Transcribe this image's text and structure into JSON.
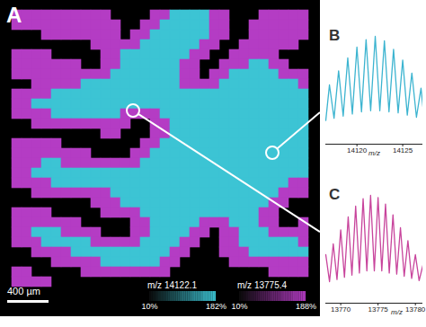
{
  "chart_data": [
    {
      "type": "heatmap",
      "title": "A",
      "scale_bar": "400 µm",
      "tick_labels": false,
      "series": [
        {
          "name": "m/z 14122.1",
          "color": "#3cc4d4",
          "colorbar_range": [
            10,
            182
          ],
          "colorbar_ticks": [
            {
              "value": 10,
              "label": "10%"
            },
            {
              "value": 182,
              "label": "182%"
            }
          ]
        },
        {
          "name": "m/z 13775.4",
          "color": "#b43cc4",
          "colorbar_range": [
            10,
            188
          ],
          "colorbar_ticks": [
            {
              "value": 10,
              "label": "10%"
            },
            {
              "value": 188,
              "label": "188%"
            }
          ]
        }
      ],
      "cells": [
        [
          2,
          2,
          2,
          2,
          2,
          2,
          2,
          2,
          2,
          2,
          0,
          0,
          0,
          0,
          2,
          2,
          1,
          1,
          1,
          1,
          2,
          2,
          0,
          0,
          0,
          2,
          2,
          2,
          2,
          2
        ],
        [
          2,
          2,
          2,
          2,
          2,
          2,
          2,
          2,
          2,
          2,
          2,
          0,
          0,
          2,
          2,
          1,
          1,
          1,
          1,
          1,
          2,
          2,
          0,
          0,
          2,
          2,
          2,
          2,
          2,
          2
        ],
        [
          0,
          0,
          0,
          2,
          2,
          2,
          2,
          2,
          2,
          2,
          2,
          0,
          2,
          2,
          1,
          1,
          1,
          1,
          1,
          1,
          2,
          2,
          0,
          0,
          2,
          2,
          2,
          2,
          2,
          2
        ],
        [
          0,
          0,
          0,
          0,
          0,
          0,
          0,
          0,
          2,
          2,
          2,
          2,
          2,
          1,
          1,
          1,
          1,
          1,
          1,
          2,
          2,
          0,
          0,
          2,
          2,
          2,
          2,
          2,
          2,
          0
        ],
        [
          2,
          2,
          2,
          2,
          0,
          0,
          0,
          0,
          0,
          2,
          2,
          1,
          1,
          1,
          1,
          1,
          1,
          1,
          2,
          2,
          0,
          0,
          2,
          2,
          2,
          2,
          2,
          0,
          0,
          0
        ],
        [
          2,
          2,
          2,
          2,
          2,
          2,
          2,
          0,
          0,
          2,
          2,
          1,
          1,
          1,
          1,
          1,
          1,
          2,
          2,
          0,
          0,
          2,
          2,
          2,
          1,
          1,
          2,
          2,
          0,
          0
        ],
        [
          2,
          2,
          2,
          2,
          2,
          2,
          2,
          2,
          2,
          2,
          1,
          1,
          1,
          1,
          1,
          1,
          1,
          2,
          2,
          0,
          2,
          2,
          1,
          1,
          1,
          1,
          1,
          2,
          2,
          2
        ],
        [
          0,
          0,
          2,
          2,
          2,
          2,
          2,
          1,
          1,
          1,
          1,
          1,
          1,
          1,
          1,
          1,
          1,
          2,
          2,
          2,
          2,
          1,
          1,
          1,
          1,
          1,
          1,
          1,
          1,
          2
        ],
        [
          2,
          2,
          2,
          2,
          1,
          1,
          1,
          1,
          1,
          1,
          1,
          1,
          1,
          1,
          1,
          1,
          1,
          1,
          1,
          1,
          1,
          1,
          1,
          1,
          1,
          1,
          1,
          1,
          1,
          1
        ],
        [
          2,
          2,
          1,
          1,
          1,
          1,
          1,
          1,
          1,
          1,
          1,
          1,
          1,
          1,
          1,
          1,
          1,
          1,
          1,
          1,
          1,
          1,
          1,
          1,
          1,
          1,
          1,
          1,
          1,
          1
        ],
        [
          2,
          2,
          2,
          2,
          1,
          1,
          1,
          1,
          1,
          1,
          1,
          2,
          2,
          2,
          2,
          1,
          1,
          1,
          1,
          1,
          1,
          1,
          1,
          1,
          1,
          1,
          1,
          1,
          1,
          1
        ],
        [
          0,
          0,
          2,
          2,
          2,
          2,
          2,
          2,
          2,
          2,
          2,
          2,
          0,
          0,
          2,
          2,
          1,
          1,
          1,
          1,
          1,
          1,
          1,
          1,
          1,
          1,
          1,
          1,
          1,
          1
        ],
        [
          0,
          0,
          0,
          0,
          0,
          0,
          0,
          0,
          0,
          2,
          2,
          0,
          0,
          0,
          2,
          2,
          1,
          1,
          1,
          1,
          1,
          1,
          1,
          1,
          1,
          1,
          1,
          1,
          1,
          1
        ],
        [
          2,
          2,
          2,
          2,
          2,
          0,
          0,
          0,
          0,
          0,
          0,
          0,
          0,
          2,
          2,
          1,
          1,
          1,
          1,
          1,
          1,
          1,
          1,
          1,
          1,
          1,
          1,
          1,
          1,
          1
        ],
        [
          2,
          2,
          2,
          2,
          2,
          2,
          2,
          2,
          0,
          0,
          0,
          0,
          2,
          2,
          1,
          1,
          1,
          1,
          1,
          1,
          1,
          1,
          1,
          1,
          1,
          1,
          1,
          1,
          1,
          1
        ],
        [
          2,
          2,
          2,
          1,
          1,
          2,
          2,
          2,
          2,
          2,
          2,
          2,
          2,
          1,
          1,
          1,
          1,
          1,
          1,
          1,
          1,
          1,
          1,
          1,
          1,
          1,
          1,
          1,
          1,
          1
        ],
        [
          2,
          2,
          1,
          1,
          1,
          1,
          1,
          1,
          1,
          1,
          1,
          1,
          1,
          1,
          1,
          1,
          1,
          1,
          1,
          1,
          1,
          1,
          1,
          1,
          1,
          1,
          1,
          1,
          1,
          1
        ],
        [
          2,
          2,
          2,
          2,
          1,
          1,
          1,
          1,
          1,
          1,
          1,
          1,
          1,
          1,
          1,
          1,
          1,
          1,
          1,
          1,
          1,
          1,
          1,
          1,
          1,
          1,
          1,
          1,
          2,
          2
        ],
        [
          0,
          0,
          2,
          2,
          2,
          2,
          2,
          2,
          2,
          2,
          1,
          1,
          1,
          1,
          1,
          1,
          1,
          1,
          1,
          1,
          1,
          1,
          1,
          1,
          1,
          1,
          1,
          2,
          2,
          2
        ],
        [
          0,
          0,
          0,
          0,
          0,
          0,
          0,
          0,
          2,
          2,
          2,
          1,
          1,
          1,
          1,
          1,
          1,
          1,
          1,
          1,
          1,
          1,
          1,
          1,
          1,
          1,
          2,
          2,
          0,
          0
        ],
        [
          2,
          2,
          2,
          2,
          0,
          0,
          0,
          0,
          0,
          2,
          2,
          2,
          2,
          1,
          1,
          1,
          1,
          1,
          1,
          1,
          1,
          1,
          1,
          1,
          1,
          2,
          2,
          0,
          0,
          0
        ],
        [
          2,
          2,
          2,
          2,
          2,
          2,
          2,
          0,
          0,
          0,
          0,
          0,
          2,
          2,
          1,
          1,
          1,
          1,
          1,
          2,
          2,
          2,
          1,
          1,
          1,
          2,
          2,
          0,
          0,
          2
        ],
        [
          2,
          2,
          1,
          1,
          1,
          2,
          2,
          2,
          2,
          0,
          0,
          0,
          2,
          2,
          1,
          1,
          1,
          1,
          2,
          2,
          0,
          2,
          2,
          1,
          1,
          1,
          2,
          2,
          2,
          2
        ],
        [
          2,
          2,
          2,
          1,
          1,
          1,
          1,
          1,
          2,
          2,
          2,
          2,
          2,
          1,
          1,
          1,
          1,
          2,
          2,
          0,
          0,
          2,
          2,
          1,
          1,
          1,
          1,
          1,
          1,
          2
        ],
        [
          0,
          0,
          2,
          2,
          2,
          2,
          1,
          1,
          1,
          1,
          1,
          1,
          1,
          1,
          1,
          1,
          2,
          2,
          0,
          0,
          0,
          2,
          2,
          2,
          1,
          1,
          1,
          1,
          1,
          1
        ],
        [
          0,
          0,
          0,
          0,
          2,
          2,
          2,
          2,
          2,
          1,
          1,
          1,
          1,
          1,
          1,
          2,
          2,
          0,
          0,
          0,
          0,
          0,
          2,
          2,
          2,
          2,
          2,
          2,
          2,
          2
        ],
        [
          2,
          2,
          0,
          0,
          0,
          0,
          0,
          2,
          2,
          2,
          2,
          2,
          2,
          2,
          2,
          2,
          0,
          0,
          0,
          0,
          0,
          0,
          0,
          0,
          0,
          0,
          2,
          2,
          2,
          2
        ],
        [
          2,
          2,
          2,
          2,
          0,
          0,
          0,
          0,
          0,
          0,
          0,
          0,
          0,
          0,
          0,
          0,
          0,
          0,
          0,
          0,
          0,
          0,
          0,
          0,
          0,
          0,
          0,
          0,
          0,
          0
        ],
        [
          0,
          0,
          0,
          0,
          0,
          0,
          0,
          0,
          0,
          0,
          0,
          0,
          0,
          0,
          0,
          0,
          0,
          0,
          0,
          0,
          0,
          0,
          0,
          0,
          0,
          0,
          0,
          0,
          0,
          0
        ],
        [
          0,
          0,
          0,
          0,
          0,
          0,
          0,
          0,
          0,
          0,
          0,
          0,
          0,
          0,
          0,
          0,
          0,
          0,
          0,
          0,
          0,
          0,
          0,
          0,
          0,
          0,
          0,
          0,
          0,
          0
        ]
      ]
    },
    {
      "type": "line",
      "title": "B",
      "x_label": "m/z",
      "color": "#3cb4d0",
      "tick_labels": "x",
      "xlim": [
        14116.6,
        14127.2
      ],
      "xticks": [
        14120,
        14125
      ],
      "ylim": [
        0,
        105
      ],
      "x": [
        14116.6,
        14117,
        14117.5,
        14118,
        14118.5,
        14119,
        14119.5,
        14120,
        14120.5,
        14121,
        14121.5,
        14122,
        14122.5,
        14123,
        14123.5,
        14124,
        14124.5,
        14125,
        14125.5,
        14126,
        14126.5,
        14127,
        14127.2
      ],
      "values": [
        22,
        55,
        24,
        68,
        26,
        80,
        28,
        90,
        30,
        97,
        31,
        100,
        31,
        96,
        30,
        88,
        29,
        78,
        27,
        66,
        25,
        52,
        35
      ]
    },
    {
      "type": "line",
      "title": "C",
      "x_label": "m/z",
      "color": "#c8449c",
      "tick_labels": "x",
      "xlim": [
        13768,
        13781
      ],
      "xticks": [
        13770,
        13775,
        13780
      ],
      "ylim": [
        0,
        105
      ],
      "x": [
        13768,
        13768.5,
        13769,
        13769.5,
        13770,
        13770.5,
        13771,
        13771.5,
        13772,
        13772.5,
        13773,
        13773.5,
        13774,
        13774.5,
        13775,
        13775.5,
        13776,
        13776.5,
        13777,
        13777.5,
        13778,
        13778.5,
        13779,
        13779.5,
        13780,
        13780.5,
        13781
      ],
      "values": [
        45,
        20,
        55,
        22,
        68,
        24,
        80,
        26,
        90,
        28,
        97,
        30,
        100,
        30,
        98,
        30,
        92,
        28,
        82,
        27,
        70,
        25,
        58,
        23,
        45,
        21,
        35
      ]
    }
  ]
}
